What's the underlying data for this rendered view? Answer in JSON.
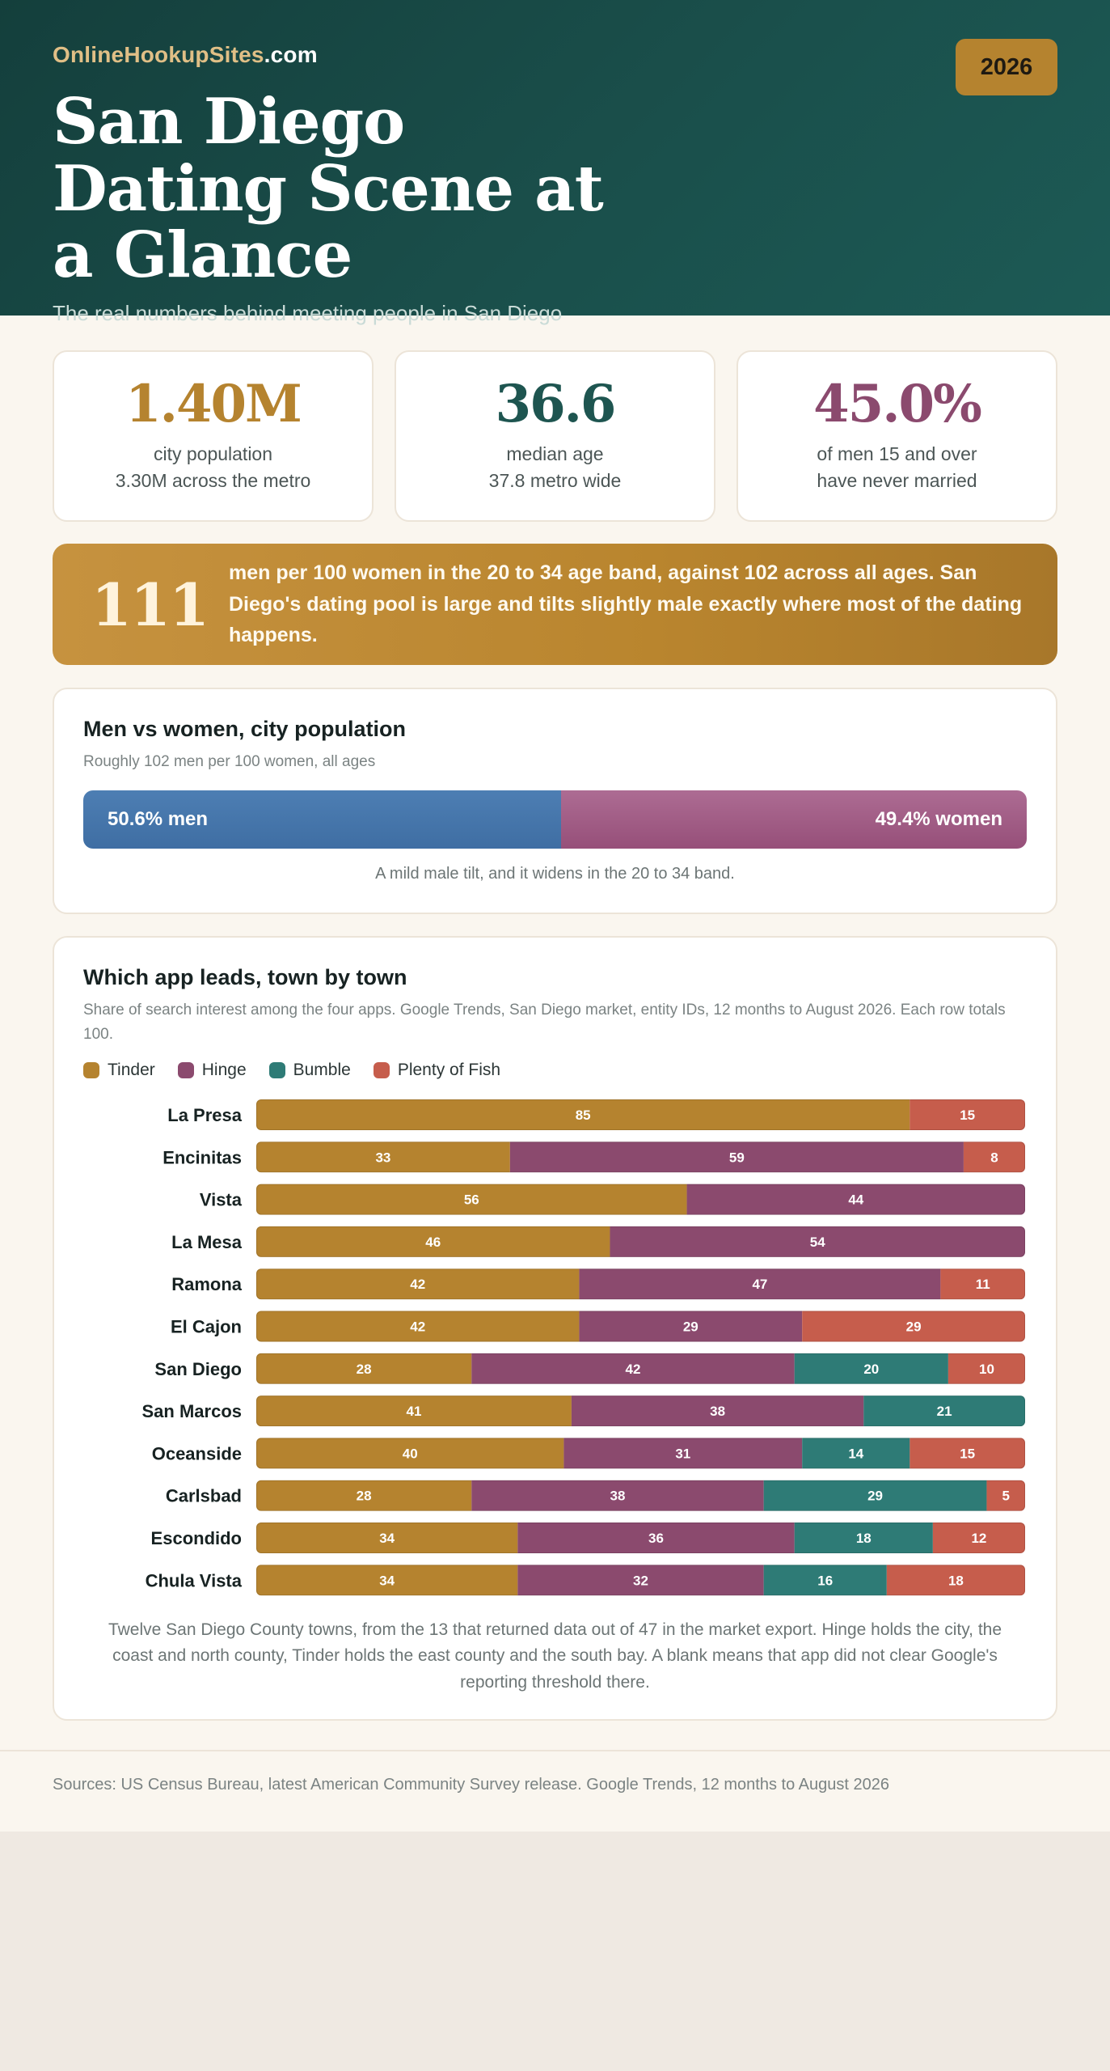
{
  "header": {
    "brand_main": "OnlineHookupSites",
    "brand_suffix": ".com",
    "year": "2026",
    "title": "San Diego Dating Scene at a Glance",
    "subtitle": "The real numbers behind meeting people in San Diego"
  },
  "stats": [
    {
      "value": "1.40M",
      "label": "city population",
      "sublabel": "3.30M across the metro",
      "color": "#b5832f"
    },
    {
      "value": "36.6",
      "label": "median age",
      "sublabel": "37.8 metro wide",
      "color": "#1e5550"
    },
    {
      "value": "45.0%",
      "label": "of men 15 and over",
      "sublabel": "have never married",
      "color": "#8b4a6e"
    }
  ],
  "banner": {
    "number": "111",
    "text": "men per 100 women in the 20 to 34 age band, against 102 across all ages. San Diego's dating pool is large and tilts slightly male exactly where most of the dating happens."
  },
  "gender": {
    "title": "Men vs women, city population",
    "subtitle": "Roughly 102 men per 100 women, all ages",
    "men_label": "50.6% men",
    "women_label": "49.4% women",
    "men_share": 50.6,
    "women_share": 49.4,
    "men_color": "#4676aa",
    "women_color": "#a05d86",
    "note": "A mild male tilt, and it widens in the 20 to 34 band."
  },
  "apps": {
    "title": "Which app leads, town by town",
    "subtitle": "Share of search interest among the four apps. Google Trends, San Diego market, entity IDs, 12 months to August 2026. Each row totals 100.",
    "note": "Twelve San Diego County towns, from the 13 that returned data out of 47 in the market export. Hinge holds the city, the coast and north county, Tinder holds the east county and the south bay. A blank means that app did not clear Google's reporting threshold there."
  },
  "chart_data": {
    "type": "bar",
    "orientation": "horizontal",
    "stacked": true,
    "title": "Which app leads, town by town",
    "categories": [
      "La Presa",
      "Encinitas",
      "Vista",
      "La Mesa",
      "Ramona",
      "El Cajon",
      "San Diego",
      "San Marcos",
      "Oceanside",
      "Carlsbad",
      "Escondido",
      "Chula Vista"
    ],
    "series": [
      {
        "name": "Tinder",
        "color": "#b5832f",
        "values": [
          85,
          33,
          56,
          46,
          42,
          42,
          28,
          41,
          40,
          28,
          34,
          34
        ]
      },
      {
        "name": "Hinge",
        "color": "#8b4a6e",
        "values": [
          null,
          59,
          44,
          54,
          47,
          29,
          42,
          38,
          31,
          38,
          36,
          32
        ]
      },
      {
        "name": "Bumble",
        "color": "#2e7b76",
        "values": [
          null,
          null,
          null,
          null,
          null,
          null,
          20,
          21,
          14,
          29,
          18,
          16
        ]
      },
      {
        "name": "Plenty of Fish",
        "color": "#c65d4c",
        "values": [
          15,
          8,
          null,
          null,
          11,
          29,
          10,
          null,
          15,
          5,
          12,
          18
        ]
      }
    ],
    "xlim": [
      0,
      100
    ],
    "legend": "top-left"
  },
  "footer": {
    "sources": "Sources: US Census Bureau, latest American Community Survey release. Google Trends, 12 months to August 2026"
  }
}
